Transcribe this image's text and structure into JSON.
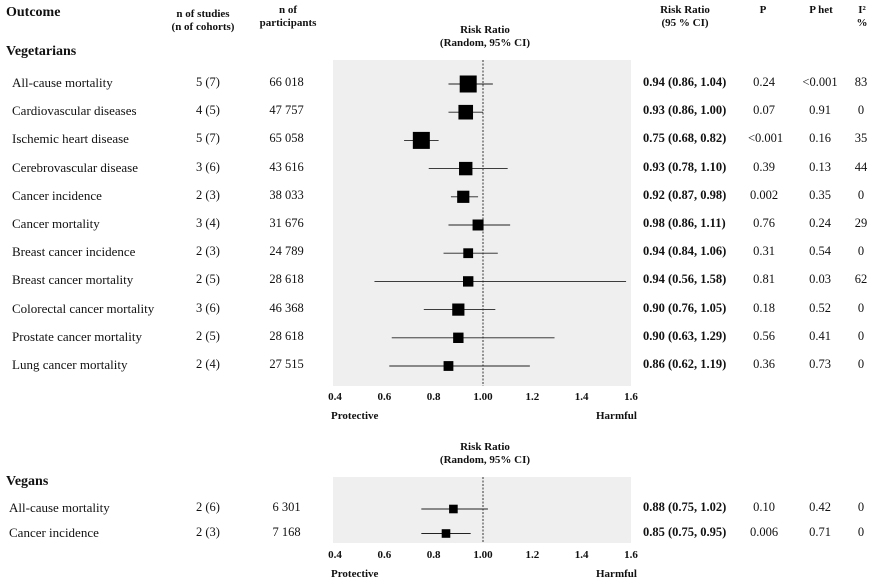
{
  "header": {
    "outcome": "Outcome",
    "studies_line1": "n of studies",
    "studies_line2": "(n of cohorts)",
    "participants_line1": "n of",
    "participants_line2": "participants",
    "rr_line1": "Risk Ratio",
    "rr_line2": "(95 % CI)",
    "p": "P",
    "phet": "P het",
    "i2": "I²",
    "i2_unit": "%"
  },
  "chart_data": [
    {
      "type": "forest",
      "group": "Vegetarians",
      "title": "Risk Ratio",
      "subtitle": "(Random, 95% CI)",
      "xlim": [
        0.4,
        1.6
      ],
      "ticks": [
        "0.4",
        "0.6",
        "0.8",
        "1.00",
        "1.2",
        "1.4",
        "1.6"
      ],
      "reference_line": 1.0,
      "left_label": "Protective",
      "right_label": "Harmful",
      "rows": [
        {
          "outcome": "All-cause mortality",
          "studies": "5 (7)",
          "participants": "66 018",
          "rr": 0.94,
          "lo": 0.86,
          "hi": 1.04,
          "rr_text": "0.94 (0.86, 1.04)",
          "p": "0.24",
          "phet": "<0.001",
          "i2": "83",
          "weight": 1.0
        },
        {
          "outcome": "Cardiovascular diseases",
          "studies": "4 (5)",
          "participants": "47 757",
          "rr": 0.93,
          "lo": 0.86,
          "hi": 1.0,
          "rr_text": "0.93 (0.86, 1.00)",
          "p": "0.07",
          "phet": "0.91",
          "i2": "0",
          "weight": 0.8
        },
        {
          "outcome": "Ischemic heart disease",
          "studies": "5 (7)",
          "participants": "65 058",
          "rr": 0.75,
          "lo": 0.68,
          "hi": 0.82,
          "rr_text": "0.75 (0.68, 0.82)",
          "p": "<0.001",
          "phet": "0.16",
          "i2": "35",
          "weight": 1.0
        },
        {
          "outcome": "Cerebrovascular disease",
          "studies": "3 (6)",
          "participants": "43 616",
          "rr": 0.93,
          "lo": 0.78,
          "hi": 1.1,
          "rr_text": "0.93 (0.78, 1.10)",
          "p": "0.39",
          "phet": "0.13",
          "i2": "44",
          "weight": 0.7
        },
        {
          "outcome": "Cancer incidence",
          "studies": "2 (3)",
          "participants": "38 033",
          "rr": 0.92,
          "lo": 0.87,
          "hi": 0.98,
          "rr_text": "0.92 (0.87, 0.98)",
          "p": "0.002",
          "phet": "0.35",
          "i2": "0",
          "weight": 0.6
        },
        {
          "outcome": "Cancer mortality",
          "studies": "3 (4)",
          "participants": "31 676",
          "rr": 0.98,
          "lo": 0.86,
          "hi": 1.11,
          "rr_text": "0.98 (0.86, 1.11)",
          "p": "0.76",
          "phet": "0.24",
          "i2": "29",
          "weight": 0.5
        },
        {
          "outcome": "Breast cancer incidence",
          "studies": "2 (3)",
          "participants": "24 789",
          "rr": 0.94,
          "lo": 0.84,
          "hi": 1.06,
          "rr_text": "0.94 (0.84, 1.06)",
          "p": "0.31",
          "phet": "0.54",
          "i2": "0",
          "weight": 0.4
        },
        {
          "outcome": "Breast cancer mortality",
          "studies": "2 (5)",
          "participants": "28 618",
          "rr": 0.94,
          "lo": 0.56,
          "hi": 1.58,
          "rr_text": "0.94 (0.56, 1.58)",
          "p": "0.81",
          "phet": "0.03",
          "i2": "62",
          "weight": 0.45
        },
        {
          "outcome": "Colorectal cancer mortality",
          "studies": "3 (6)",
          "participants": "46 368",
          "rr": 0.9,
          "lo": 0.76,
          "hi": 1.05,
          "rr_text": "0.90 (0.76, 1.05)",
          "p": "0.18",
          "phet": "0.52",
          "i2": "0",
          "weight": 0.6
        },
        {
          "outcome": "Prostate cancer mortality",
          "studies": "2 (5)",
          "participants": "28 618",
          "rr": 0.9,
          "lo": 0.63,
          "hi": 1.29,
          "rr_text": "0.90 (0.63, 1.29)",
          "p": "0.56",
          "phet": "0.41",
          "i2": "0",
          "weight": 0.45
        },
        {
          "outcome": "Lung cancer mortality",
          "studies": "2 (4)",
          "participants": "27 515",
          "rr": 0.86,
          "lo": 0.62,
          "hi": 1.19,
          "rr_text": "0.86 (0.62, 1.19)",
          "p": "0.36",
          "phet": "0.73",
          "i2": "0",
          "weight": 0.4
        }
      ]
    },
    {
      "type": "forest",
      "group": "Vegans",
      "title": "Risk Ratio",
      "subtitle": "(Random, 95% CI)",
      "xlim": [
        0.4,
        1.6
      ],
      "ticks": [
        "0.4",
        "0.6",
        "0.8",
        "1.00",
        "1.2",
        "1.4",
        "1.6"
      ],
      "reference_line": 1.0,
      "left_label": "Protective",
      "right_label": "Harmful",
      "rows": [
        {
          "outcome": "All-cause mortality",
          "studies": "2 (6)",
          "participants": "6 301",
          "rr": 0.88,
          "lo": 0.75,
          "hi": 1.02,
          "rr_text": "0.88 (0.75, 1.02)",
          "p": "0.10",
          "phet": "0.42",
          "i2": "0",
          "weight": 0.3
        },
        {
          "outcome": "Cancer incidence",
          "studies": "2 (3)",
          "participants": "7 168",
          "rr": 0.85,
          "lo": 0.75,
          "hi": 0.95,
          "rr_text": "0.85 (0.75, 0.95)",
          "p": "0.006",
          "phet": "0.71",
          "i2": "0",
          "weight": 0.3
        }
      ]
    }
  ]
}
